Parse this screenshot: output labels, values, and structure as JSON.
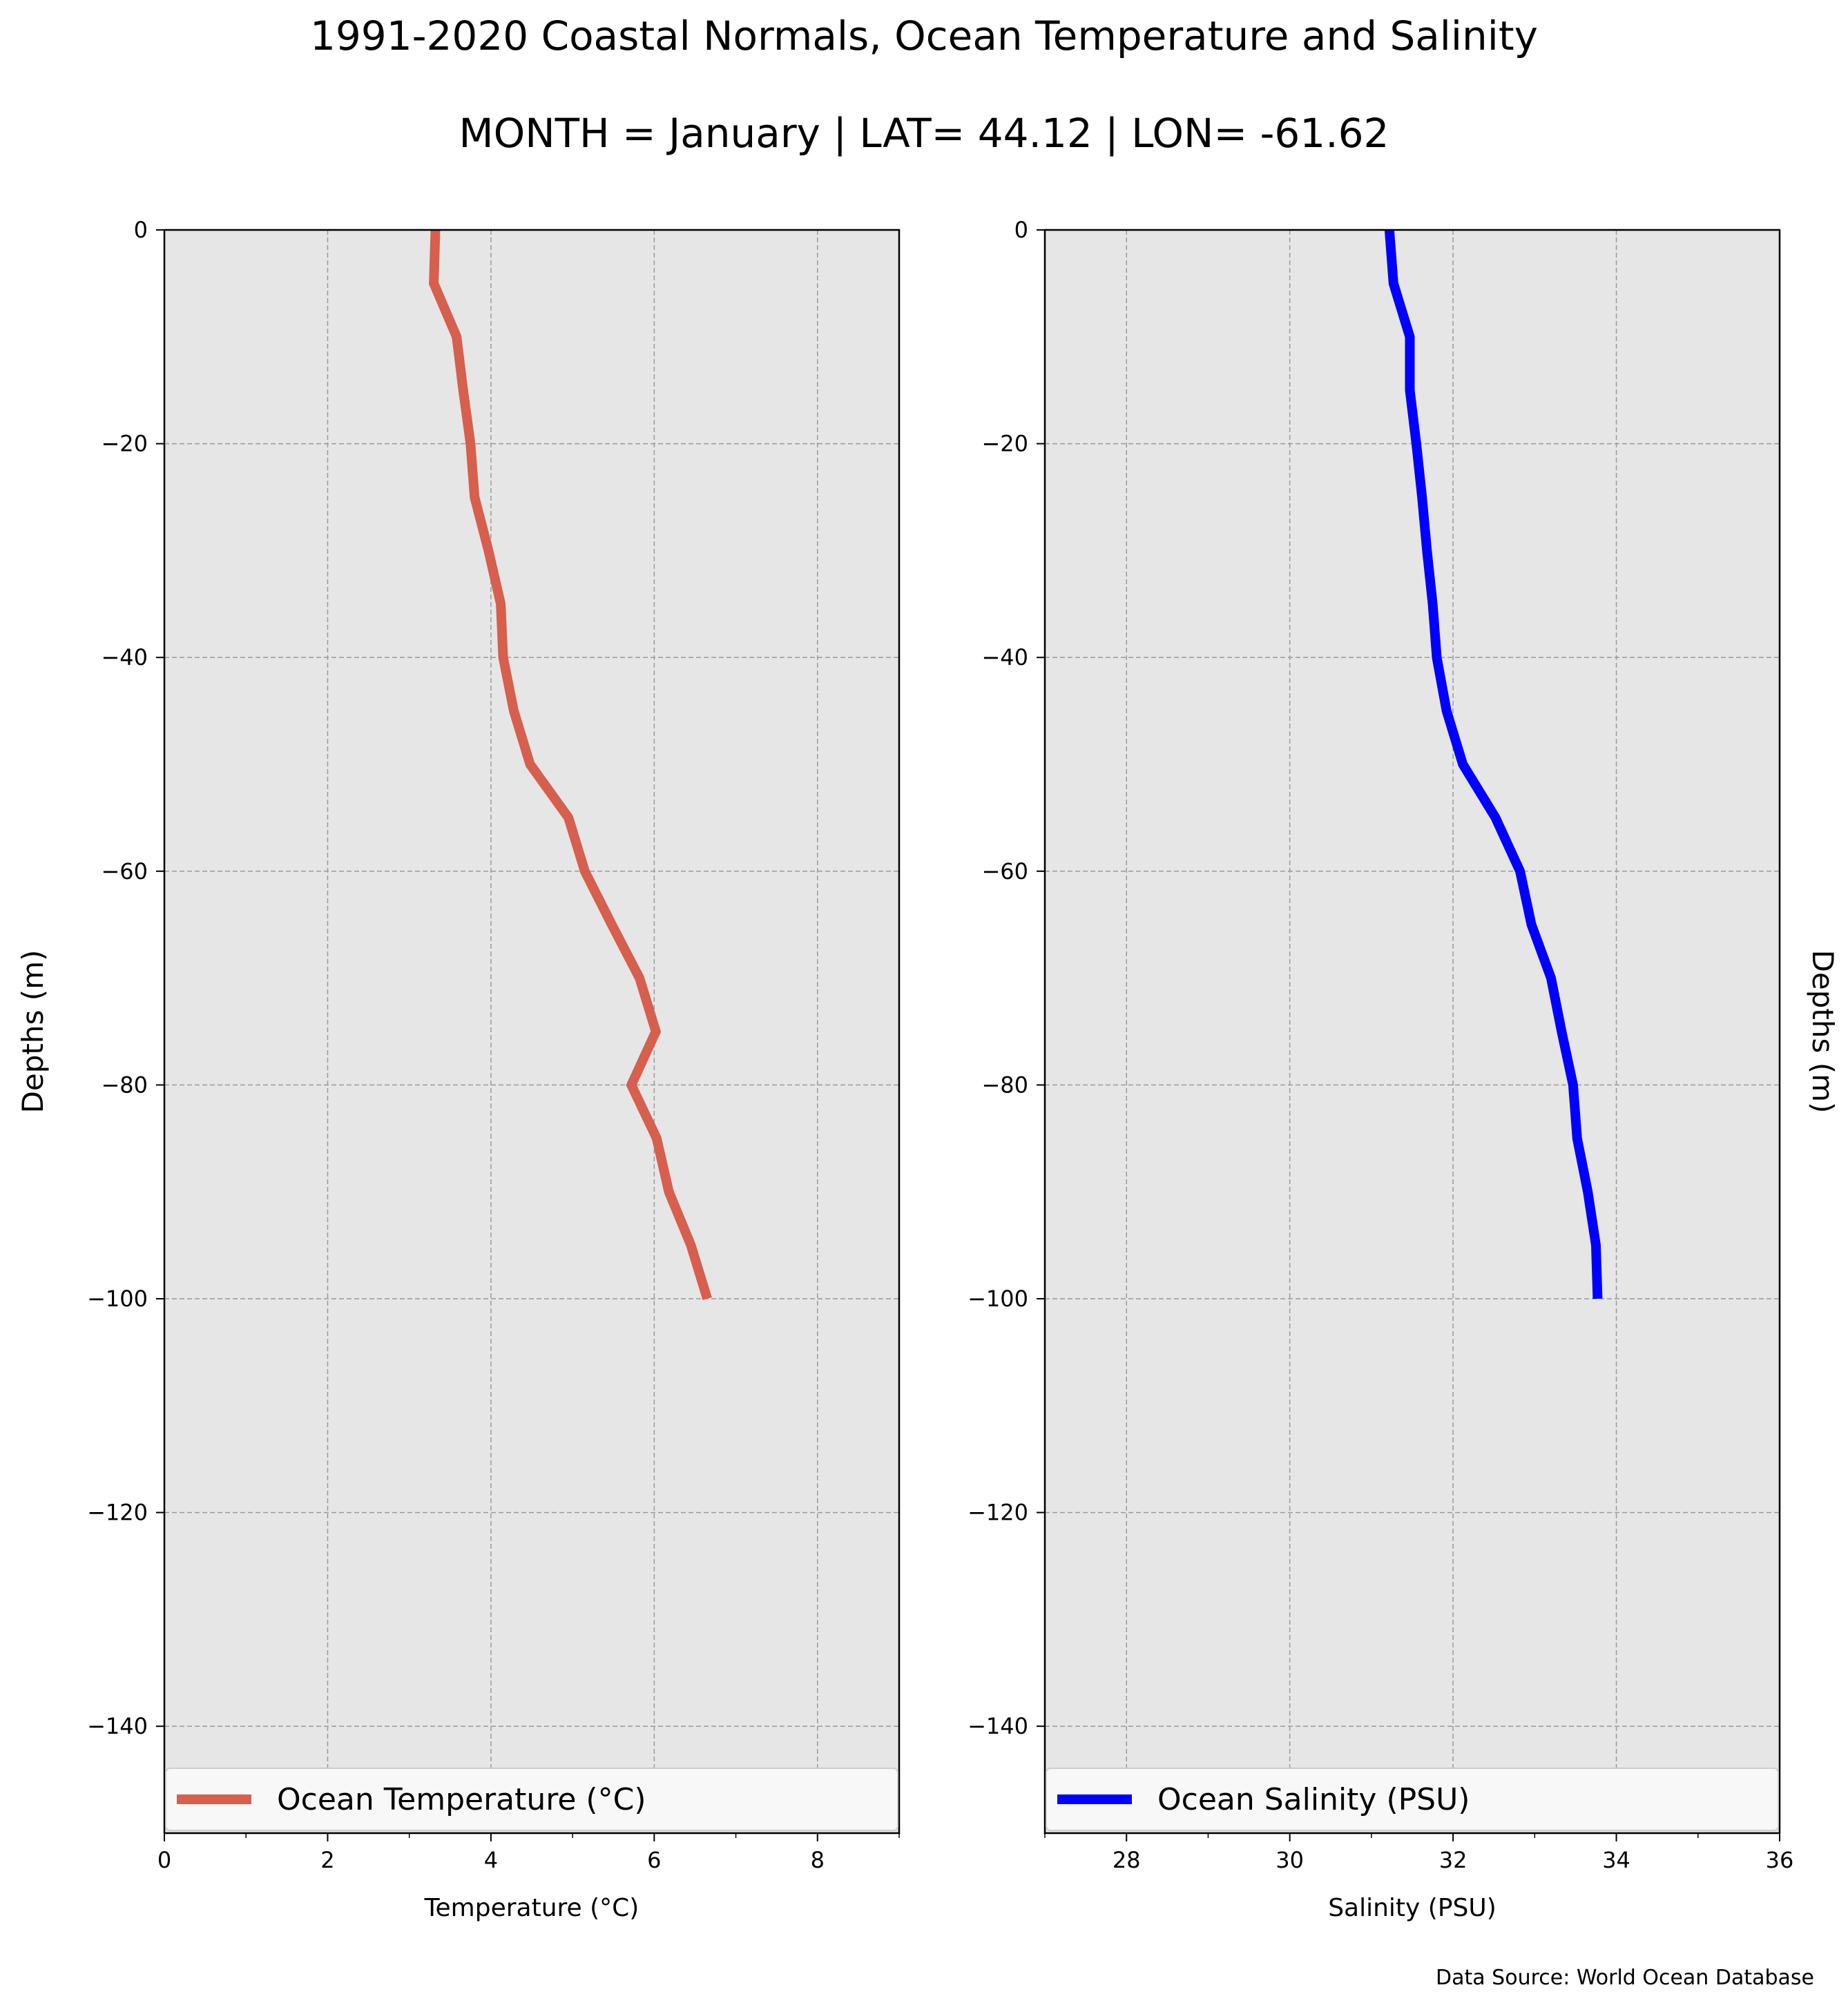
{
  "title": "1991-2020 Coastal Normals, Ocean Temperature and Salinity",
  "subtitle": "MONTH = January | LAT= 44.12 | LON= -61.62",
  "footer": "Data Source: World Ocean Database",
  "chart_data": [
    {
      "type": "line",
      "name": "temperature-panel",
      "xlabel": "Temperature (°C)",
      "ylabel": "Depths (m)",
      "ylabel_side": "left",
      "xlim": [
        0,
        9
      ],
      "ylim": [
        -150,
        0
      ],
      "xticks": [
        0,
        2,
        4,
        6,
        8
      ],
      "yticks": [
        0,
        -20,
        -40,
        -60,
        -80,
        -100,
        -120,
        -140
      ],
      "grid": true,
      "legend": "bottom",
      "color": "#d65f4d",
      "series": [
        {
          "name": "Ocean Temperature (°C)",
          "x": [
            3.32,
            3.3,
            3.58,
            3.66,
            3.75,
            3.8,
            3.97,
            4.12,
            4.15,
            4.28,
            4.48,
            4.95,
            5.15,
            5.48,
            5.82,
            6.02,
            5.72,
            6.03,
            6.18,
            6.45,
            6.65
          ],
          "y": [
            0,
            -5,
            -10,
            -15,
            -20,
            -25,
            -30,
            -35,
            -40,
            -45,
            -50,
            -55,
            -60,
            -65,
            -70,
            -75,
            -80,
            -85,
            -90,
            -95,
            -100
          ]
        }
      ]
    },
    {
      "type": "line",
      "name": "salinity-panel",
      "xlabel": "Salinity (PSU)",
      "ylabel": "Depths (m)",
      "ylabel_side": "right",
      "xlim": [
        27,
        36
      ],
      "ylim": [
        -150,
        0
      ],
      "xticks": [
        28,
        30,
        32,
        34,
        36
      ],
      "yticks": [
        0,
        -20,
        -40,
        -60,
        -80,
        -100,
        -120,
        -140
      ],
      "grid": true,
      "legend": "bottom",
      "color": "#0000ff",
      "series": [
        {
          "name": "Ocean Salinity (PSU)",
          "x": [
            31.22,
            31.27,
            31.47,
            31.47,
            31.55,
            31.62,
            31.68,
            31.75,
            31.8,
            31.92,
            32.12,
            32.52,
            32.82,
            32.96,
            33.2,
            33.33,
            33.47,
            33.52,
            33.65,
            33.75,
            33.77
          ],
          "y": [
            0,
            -5,
            -10,
            -15,
            -20,
            -25,
            -30,
            -35,
            -40,
            -45,
            -50,
            -55,
            -60,
            -65,
            -70,
            -75,
            -80,
            -85,
            -90,
            -95,
            -100
          ]
        }
      ]
    }
  ]
}
